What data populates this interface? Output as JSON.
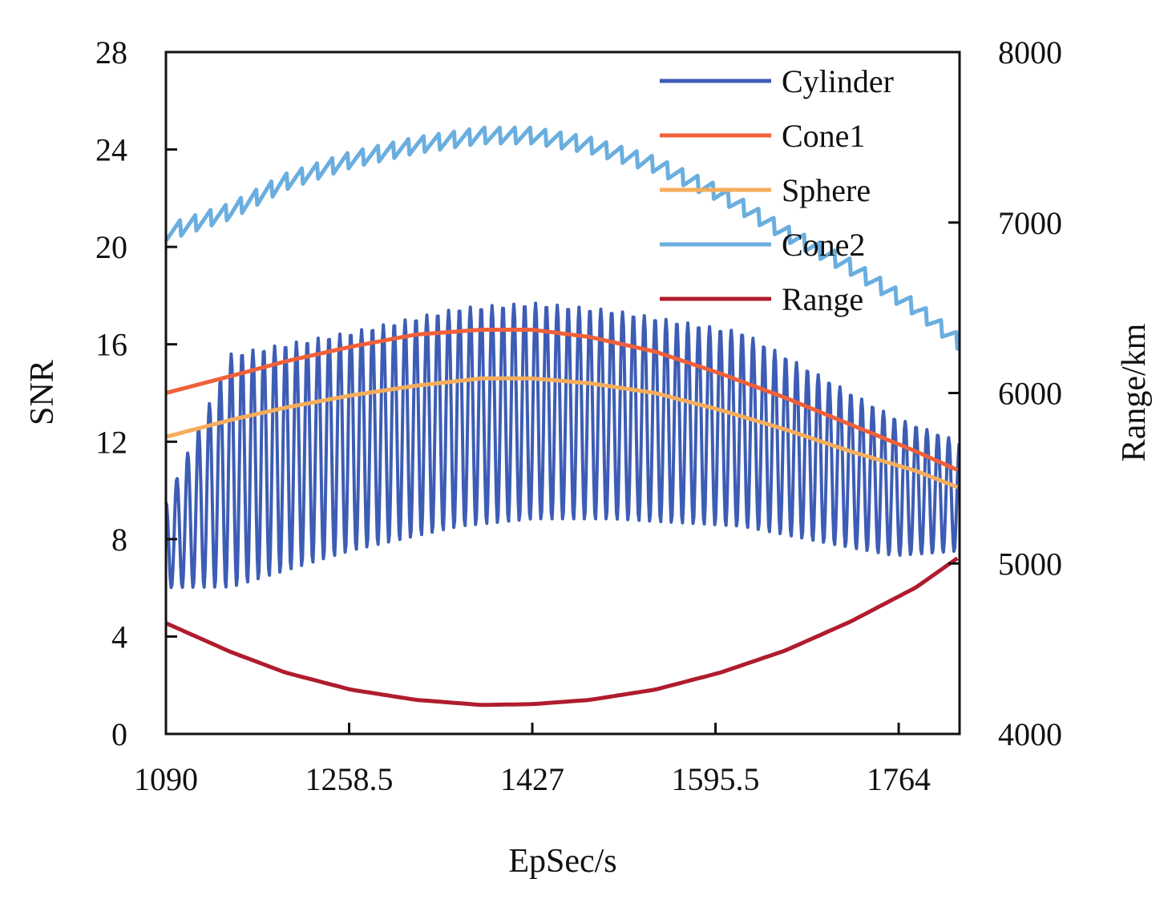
{
  "chart_data": {
    "type": "line",
    "xlabel": "EpSec/s",
    "ylabel": "SNR",
    "y2label": "Range/km",
    "xlim": [
      1090,
      1820
    ],
    "ylim": [
      0,
      28
    ],
    "y2lim": [
      4000,
      8000
    ],
    "x_ticks": [
      1090,
      1258.5,
      1427,
      1595.5,
      1764
    ],
    "x_tick_labels": [
      "1090",
      "1258.5",
      "1427",
      "1595.5",
      "1764"
    ],
    "y_ticks": [
      0,
      4,
      8,
      12,
      16,
      20,
      24,
      28
    ],
    "y_tick_labels": [
      "0",
      "4",
      "8",
      "12",
      "16",
      "20",
      "24",
      "28"
    ],
    "y2_ticks": [
      4000,
      5000,
      6000,
      7000,
      8000
    ],
    "y2_tick_labels": [
      "4000",
      "5000",
      "6000",
      "7000",
      "8000"
    ],
    "legend_position": "top-right",
    "series": [
      {
        "name": "Cylinder",
        "axis": "left",
        "color": "#3d5db5",
        "lower_envelope": {
          "x": [
            1090,
            1150,
            1260,
            1360,
            1427,
            1500,
            1620,
            1700,
            1760,
            1820
          ],
          "y": [
            6.0,
            6.0,
            7.5,
            8.5,
            8.8,
            8.8,
            8.5,
            7.8,
            7.3,
            7.5
          ]
        },
        "upper_envelope": {
          "x": [
            1090,
            1150,
            1260,
            1360,
            1427,
            1500,
            1620,
            1700,
            1760,
            1820
          ],
          "y": [
            9.5,
            15.6,
            16.5,
            17.5,
            17.7,
            17.4,
            16.5,
            14.5,
            13.0,
            12.0
          ]
        },
        "oscillation_period_s": 10
      },
      {
        "name": "Cone1",
        "axis": "left",
        "color": "#f0603a",
        "x": [
          1090,
          1150,
          1200,
          1260,
          1320,
          1380,
          1427,
          1480,
          1540,
          1600,
          1660,
          1720,
          1780,
          1820
        ],
        "y": [
          14.0,
          14.7,
          15.3,
          15.9,
          16.4,
          16.6,
          16.6,
          16.3,
          15.7,
          14.8,
          13.8,
          12.7,
          11.6,
          10.8
        ]
      },
      {
        "name": "Sphere",
        "axis": "left",
        "color": "#f6ad5b",
        "x": [
          1090,
          1150,
          1200,
          1260,
          1320,
          1380,
          1427,
          1480,
          1540,
          1600,
          1660,
          1720,
          1780,
          1820
        ],
        "y": [
          12.2,
          12.9,
          13.4,
          13.9,
          14.3,
          14.6,
          14.6,
          14.4,
          14.0,
          13.3,
          12.5,
          11.6,
          10.8,
          10.1
        ]
      },
      {
        "name": "Cone2",
        "axis": "left",
        "color": "#6aaedf",
        "x": [
          1090,
          1150,
          1200,
          1260,
          1320,
          1380,
          1427,
          1480,
          1540,
          1600,
          1660,
          1720,
          1780,
          1820
        ],
        "y": [
          20.6,
          21.5,
          22.7,
          23.6,
          24.2,
          24.6,
          24.6,
          24.2,
          23.4,
          22.2,
          20.6,
          19.2,
          17.5,
          16.1
        ],
        "ripple_amplitude": 0.35,
        "oscillation_period_s": 14
      },
      {
        "name": "Range",
        "axis": "right",
        "color": "#b01c2e",
        "x": [
          1090,
          1150,
          1200,
          1260,
          1320,
          1380,
          1427,
          1480,
          1540,
          1600,
          1660,
          1720,
          1780,
          1820
        ],
        "y": [
          4650,
          4480,
          4360,
          4260,
          4200,
          4170,
          4175,
          4200,
          4260,
          4360,
          4490,
          4660,
          4860,
          5040
        ]
      }
    ]
  }
}
